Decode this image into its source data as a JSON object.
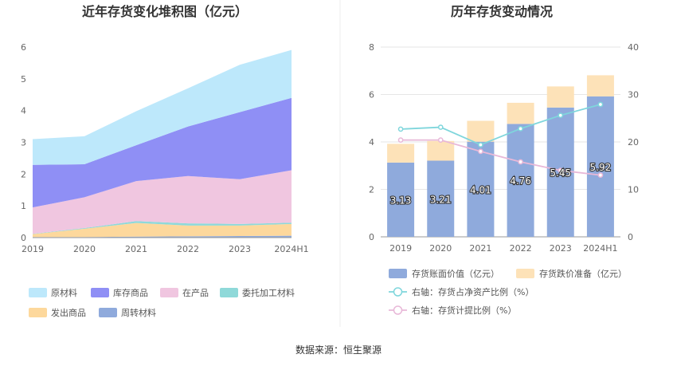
{
  "chart_data": [
    {
      "type": "area",
      "title": "近年存货变化堆积图（亿元）",
      "categories": [
        "2019",
        "2020",
        "2021",
        "2022",
        "2023",
        "2024H1"
      ],
      "stacked": true,
      "ylim": [
        0,
        6
      ],
      "yticks": [
        0,
        1,
        2,
        3,
        4,
        5,
        6
      ],
      "grid": false,
      "legend_position": "bottom",
      "series": [
        {
          "name": "周转材料",
          "color": "#8faadc",
          "values": [
            0.02,
            0.02,
            0.03,
            0.04,
            0.05,
            0.06
          ]
        },
        {
          "name": "发出商品",
          "color": "#fdd89c",
          "values": [
            0.09,
            0.26,
            0.43,
            0.34,
            0.33,
            0.37
          ]
        },
        {
          "name": "委托加工材料",
          "color": "#8fd9d9",
          "values": [
            0.01,
            0.02,
            0.06,
            0.07,
            0.05,
            0.04
          ]
        },
        {
          "name": "在产品",
          "color": "#f0c6e0",
          "values": [
            0.83,
            0.97,
            1.26,
            1.49,
            1.41,
            1.65
          ]
        },
        {
          "name": "库存商品",
          "color": "#8f8ff5",
          "values": [
            1.34,
            1.04,
            1.13,
            1.56,
            2.11,
            2.28
          ]
        },
        {
          "name": "原材料",
          "color": "#bde8fb",
          "values": [
            0.81,
            0.88,
            1.07,
            1.2,
            1.49,
            1.51
          ]
        }
      ],
      "legend_order": [
        "原材料",
        "库存商品",
        "在产品",
        "委托加工材料",
        "发出商品",
        "周转材料"
      ]
    },
    {
      "type": "bar",
      "title": "历年存货变动情况",
      "categories": [
        "2019",
        "2020",
        "2021",
        "2022",
        "2023",
        "2024H1"
      ],
      "ylim": [
        0,
        8
      ],
      "yticks": [
        0,
        2,
        4,
        6,
        8
      ],
      "y2lim": [
        0,
        40
      ],
      "y2ticks": [
        0,
        10,
        20,
        30,
        40
      ],
      "grid": true,
      "legend_position": "bottom",
      "series": [
        {
          "name": "存货账面价值（亿元）",
          "kind": "bar",
          "axis": "left",
          "color": "#8faadc",
          "values": [
            3.13,
            3.21,
            4.01,
            4.76,
            5.45,
            5.92
          ],
          "labels": [
            "3.13",
            "3.21",
            "4.01",
            "4.76",
            "5.45",
            "5.92"
          ]
        },
        {
          "name": "存货跌价准备（亿元）",
          "kind": "bar",
          "axis": "left",
          "color": "#fde2b8",
          "values": [
            0.79,
            0.83,
            0.88,
            0.89,
            0.89,
            0.89
          ]
        },
        {
          "name": "右轴：存货占净资产比例（%）",
          "kind": "line",
          "axis": "right",
          "color": "#7fd6dc",
          "values": [
            22.7,
            23.1,
            19.4,
            22.8,
            25.6,
            27.9
          ]
        },
        {
          "name": "右轴：存货计提比例（%）",
          "kind": "line",
          "axis": "right",
          "color": "#e8b8d8",
          "values": [
            20.4,
            20.4,
            18.0,
            15.8,
            14.0,
            13.0
          ]
        }
      ]
    }
  ],
  "footer": {
    "source": "数据来源：恒生聚源"
  }
}
